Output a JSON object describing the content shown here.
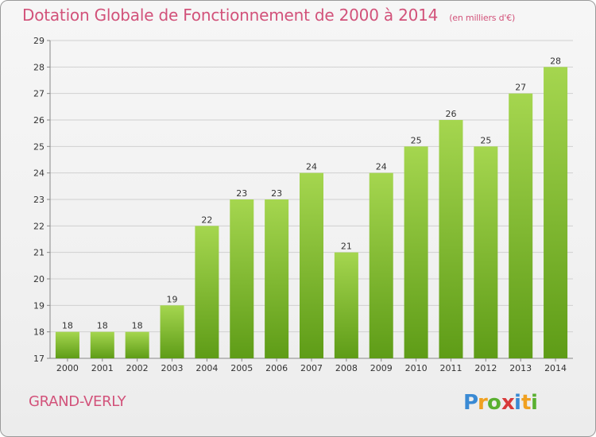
{
  "title": "Dotation Globale de Fonctionnement de 2000 à 2014",
  "unit_note": "(en milliers d'€)",
  "commune": "GRAND-VERLY",
  "logo_text": "Proxiti",
  "colors": {
    "accent": "#d2527a",
    "bar_light": "#a5d64f",
    "bar_dark": "#5e9c17",
    "grid": "#d0d0d0",
    "axis": "#888888",
    "text": "#333333"
  },
  "chart_data": {
    "type": "bar",
    "title": "Dotation Globale de Fonctionnement de 2000 à 2014",
    "xlabel": "",
    "ylabel": "",
    "ylim": [
      17,
      29
    ],
    "yticks": [
      17,
      18,
      19,
      20,
      21,
      22,
      23,
      24,
      25,
      26,
      27,
      28,
      29
    ],
    "grid": true,
    "legend": "none",
    "categories": [
      "2000",
      "2001",
      "2002",
      "2003",
      "2004",
      "2005",
      "2006",
      "2007",
      "2008",
      "2009",
      "2010",
      "2011",
      "2012",
      "2013",
      "2014"
    ],
    "values": [
      18,
      18,
      18,
      19,
      22,
      23,
      23,
      24,
      21,
      24,
      25,
      26,
      25,
      27,
      28
    ]
  }
}
